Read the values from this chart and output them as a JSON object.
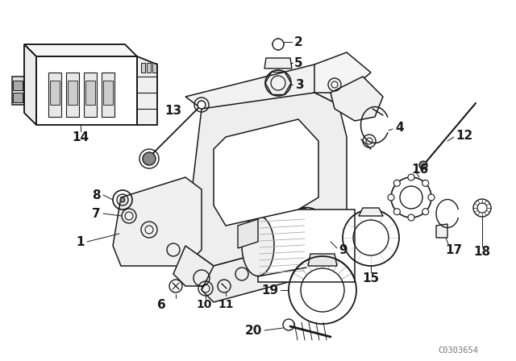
{
  "bg_color": "#ffffff",
  "line_color": "#1a1a1a",
  "watermark": "C0303654",
  "label_fontsize": 10,
  "label_fontweight": "bold"
}
